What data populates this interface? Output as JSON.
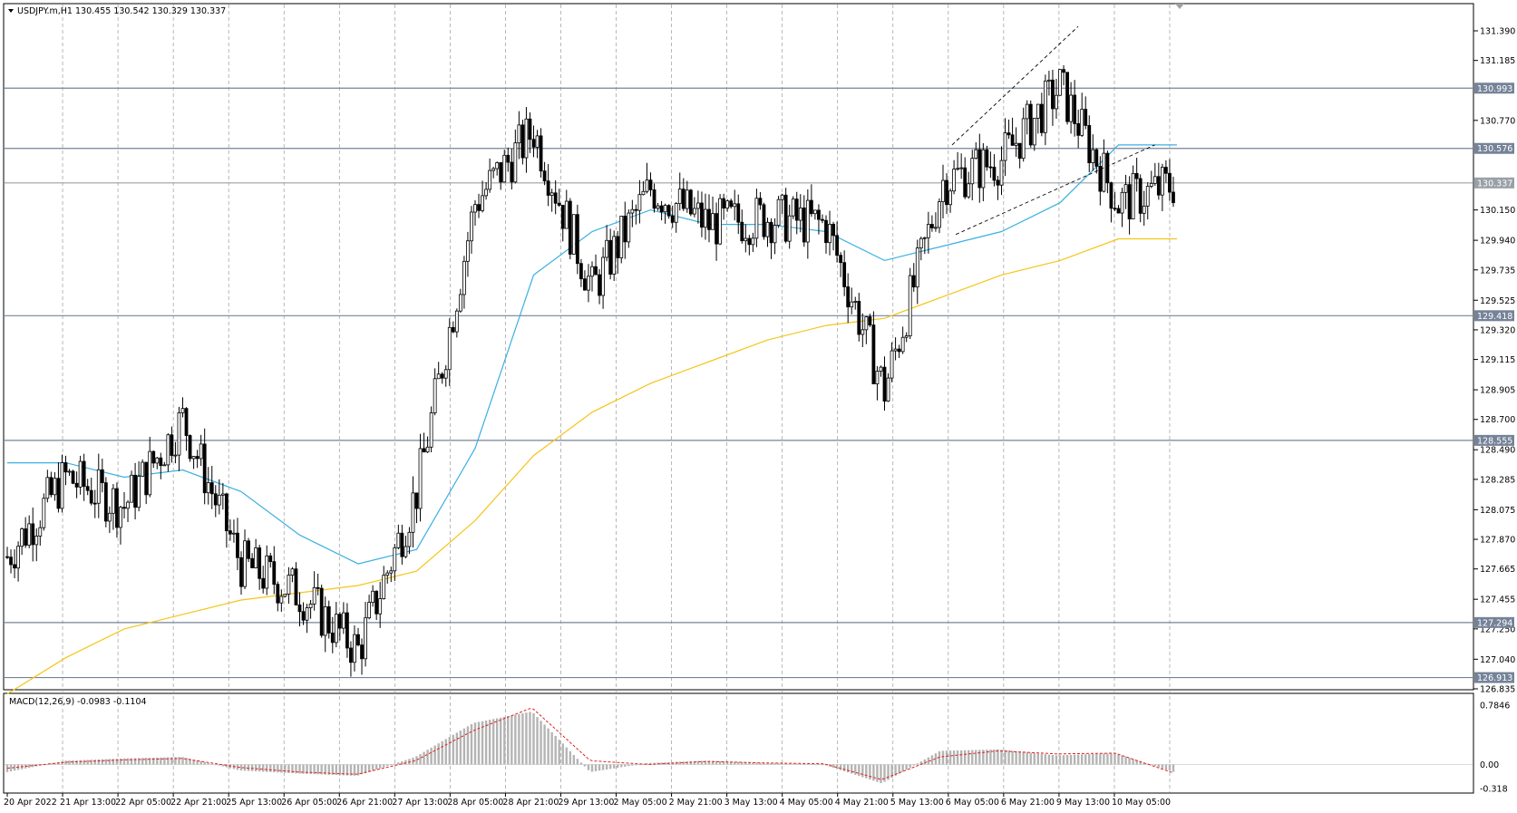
{
  "header": {
    "symbol": "USDJPY.m,H1",
    "ohlc": "130.455 130.542 130.329 130.337",
    "symbol_full": "USDJPY.m,H1  130.455 130.542 130.329 130.337"
  },
  "macd": {
    "label": "MACD(12,26,9) -0.0983 -0.1104",
    "y_ticks": [
      "0.7846",
      "0.00",
      "-0.318"
    ]
  },
  "price_axis": {
    "ticks": [
      "131.390",
      "131.185",
      "130.770",
      "130.150",
      "129.940",
      "129.735",
      "129.525",
      "129.320",
      "129.115",
      "128.905",
      "128.700",
      "128.490",
      "128.285",
      "128.075",
      "127.870",
      "127.665",
      "127.455",
      "127.250",
      "127.040",
      "126.835"
    ]
  },
  "levels": [
    {
      "price": 130.993,
      "label": "130.993",
      "color": "#758398"
    },
    {
      "price": 130.576,
      "label": "130.576",
      "color": "#758398"
    },
    {
      "price": 130.337,
      "label": "130.337",
      "color": "#9aa0a8"
    },
    {
      "price": 129.418,
      "label": "129.418",
      "color": "#758398"
    },
    {
      "price": 128.555,
      "label": "128.555",
      "color": "#758398"
    },
    {
      "price": 127.294,
      "label": "127.294",
      "color": "#758398"
    },
    {
      "price": 126.913,
      "label": "126.913",
      "color": "#758398"
    }
  ],
  "time_axis": {
    "labels": [
      "20 Apr 2022",
      "21 Apr 13:00",
      "22 Apr 05:00",
      "22 Apr 21:00",
      "25 Apr 13:00",
      "26 Apr 05:00",
      "26 Apr 21:00",
      "27 Apr 13:00",
      "28 Apr 05:00",
      "28 Apr 21:00",
      "29 Apr 13:00",
      "2 May 05:00",
      "2 May 21:00",
      "3 May 13:00",
      "4 May 05:00",
      "4 May 21:00",
      "5 May 13:00",
      "6 May 05:00",
      "6 May 21:00",
      "9 May 13:00",
      "10 May 05:00"
    ]
  },
  "colors": {
    "background": "#ffffff",
    "candles": "#000000",
    "ma_fast": "#3ab0e2",
    "ma_slow": "#f5c518",
    "macd_hist": "#b4b4b4",
    "macd_signal": "#e02020",
    "grid": "#9a9a9a",
    "level_line": "#758398"
  },
  "chart_data": [
    {
      "type": "candlestick",
      "title": "USDJPY.m,H1",
      "timeframe": "H1",
      "ylim": [
        126.835,
        131.39
      ],
      "grid": true,
      "x": [
        "20 Apr 2022",
        "21 Apr 13:00",
        "22 Apr 05:00",
        "22 Apr 21:00",
        "25 Apr 13:00",
        "26 Apr 05:00",
        "26 Apr 21:00",
        "27 Apr 13:00",
        "28 Apr 05:00",
        "28 Apr 21:00",
        "29 Apr 13:00",
        "2 May 05:00",
        "2 May 21:00",
        "3 May 13:00",
        "4 May 05:00",
        "4 May 21:00",
        "5 May 13:00",
        "6 May 05:00",
        "6 May 21:00",
        "9 May 13:00",
        "10 May 05:00"
      ],
      "close_approx": [
        127.75,
        128.3,
        128.1,
        128.7,
        127.7,
        127.5,
        127.1,
        128.2,
        130.2,
        130.7,
        129.6,
        130.3,
        130.05,
        130.1,
        130.05,
        128.9,
        130.35,
        130.5,
        131.0,
        130.2,
        130.337
      ],
      "series": [
        {
          "name": "MA fast",
          "values": [
            128.4,
            128.4,
            128.3,
            128.35,
            128.2,
            127.9,
            127.7,
            127.8,
            128.5,
            129.7,
            130.0,
            130.15,
            130.05,
            130.05,
            130.0,
            129.8,
            129.9,
            130.0,
            130.2,
            130.6,
            130.6
          ]
        },
        {
          "name": "MA slow",
          "values": [
            126.8,
            127.05,
            127.25,
            127.35,
            127.45,
            127.5,
            127.55,
            127.65,
            128.0,
            128.45,
            128.75,
            128.95,
            129.1,
            129.25,
            129.35,
            129.4,
            129.55,
            129.7,
            129.8,
            129.95,
            129.95
          ]
        }
      ]
    },
    {
      "type": "bar",
      "title": "MACD(12,26,9)",
      "ylim": [
        -0.318,
        0.7846
      ],
      "x": [
        "20 Apr 2022",
        "21 Apr 13:00",
        "22 Apr 05:00",
        "22 Apr 21:00",
        "25 Apr 13:00",
        "26 Apr 05:00",
        "26 Apr 21:00",
        "27 Apr 13:00",
        "28 Apr 05:00",
        "28 Apr 21:00",
        "29 Apr 13:00",
        "2 May 05:00",
        "2 May 21:00",
        "3 May 13:00",
        "4 May 05:00",
        "4 May 21:00",
        "5 May 13:00",
        "6 May 05:00",
        "6 May 21:00",
        "9 May 13:00",
        "10 May 05:00"
      ],
      "series": [
        {
          "name": "MACD",
          "values": [
            -0.1,
            0.05,
            0.08,
            0.1,
            -0.08,
            -0.12,
            -0.15,
            0.1,
            0.55,
            0.7,
            -0.1,
            0.02,
            0.05,
            0.02,
            0.0,
            -0.25,
            0.18,
            0.2,
            0.12,
            0.15,
            -0.0983
          ]
        },
        {
          "name": "Signal",
          "values": [
            -0.05,
            0.03,
            0.06,
            0.08,
            -0.04,
            -0.1,
            -0.13,
            0.05,
            0.45,
            0.75,
            0.05,
            0.0,
            0.04,
            0.02,
            0.01,
            -0.2,
            0.1,
            0.18,
            0.14,
            0.15,
            -0.1104
          ]
        }
      ],
      "current": {
        "macd": -0.0983,
        "signal": -0.1104
      }
    }
  ]
}
